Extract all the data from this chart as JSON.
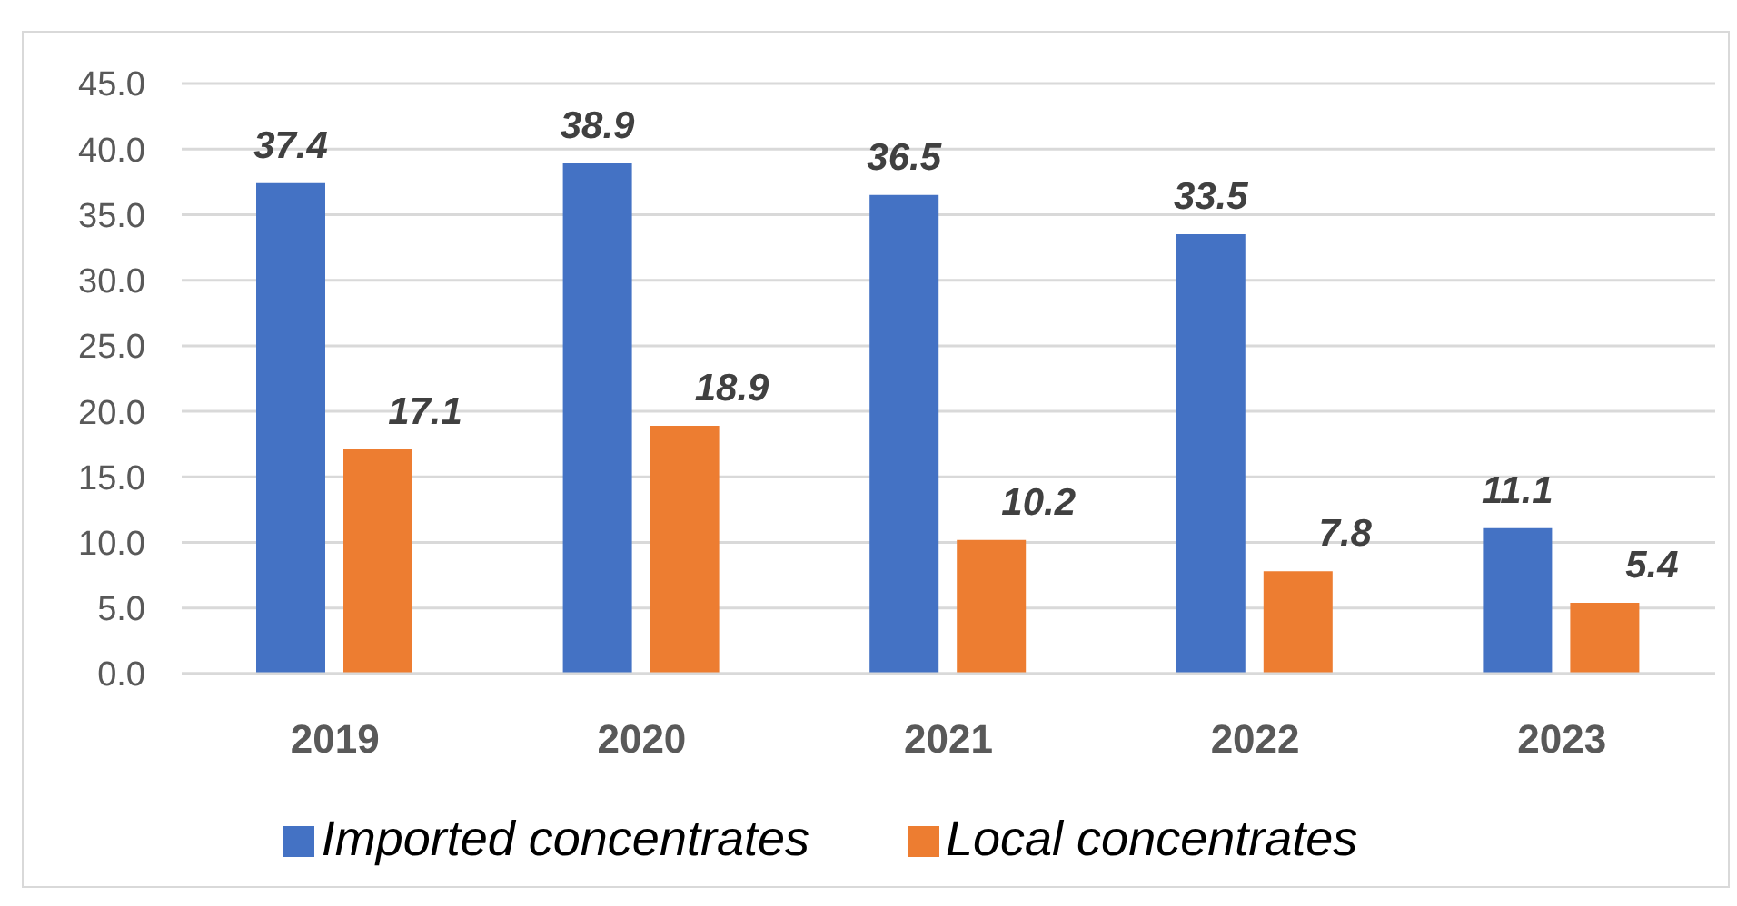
{
  "chart_data": {
    "type": "bar",
    "categories": [
      "2019",
      "2020",
      "2021",
      "2022",
      "2023"
    ],
    "series": [
      {
        "name": "Imported concentrates",
        "color": "#4472c4",
        "values": [
          37.4,
          38.9,
          36.5,
          33.5,
          11.1
        ]
      },
      {
        "name": "Local concentrates",
        "color": "#ed7d31",
        "values": [
          17.1,
          18.9,
          10.2,
          7.8,
          5.4
        ]
      }
    ],
    "ylim": [
      0,
      45
    ],
    "yticks": [
      {
        "value": 0,
        "label": "0.0"
      },
      {
        "value": 5,
        "label": "5.0"
      },
      {
        "value": 10,
        "label": "10.0"
      },
      {
        "value": 15,
        "label": "15.0"
      },
      {
        "value": 20,
        "label": "20.0"
      },
      {
        "value": 25,
        "label": "25.0"
      },
      {
        "value": 30,
        "label": "30.0"
      },
      {
        "value": 35,
        "label": "35.0"
      },
      {
        "value": 40,
        "label": "40.0"
      },
      {
        "value": 45,
        "label": "45.0"
      }
    ],
    "grid": "y",
    "legend": "bottom",
    "data_labels": true
  }
}
